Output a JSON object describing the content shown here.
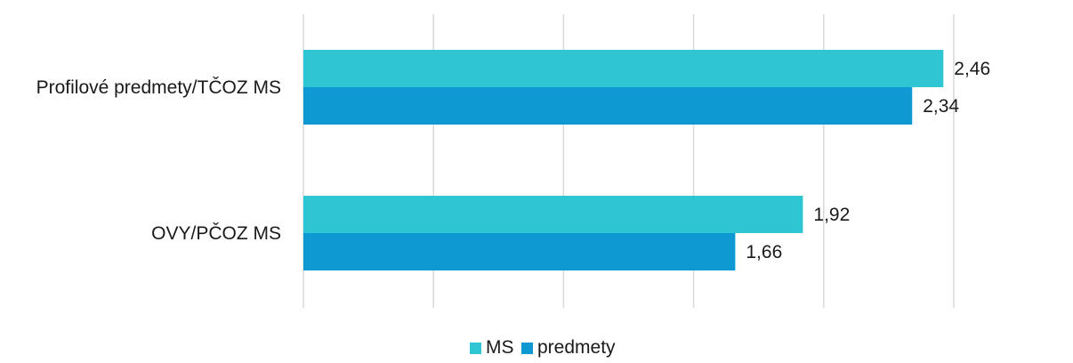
{
  "chart_data": {
    "type": "bar",
    "orientation": "horizontal",
    "categories": [
      "Profilové predmety/TČOZ MS",
      "OVY/PČOZ MS"
    ],
    "series": [
      {
        "name": "MS",
        "values": [
          2.46,
          1.92
        ],
        "color": "#2ec6d2",
        "labels": [
          "2,46",
          "1,92"
        ]
      },
      {
        "name": "predmety",
        "values": [
          2.34,
          1.66
        ],
        "color": "#0e99d2",
        "labels": [
          "2,34",
          "1,66"
        ]
      }
    ],
    "xlim": [
      0,
      2.5
    ],
    "grid": true,
    "legend_position": "bottom"
  }
}
